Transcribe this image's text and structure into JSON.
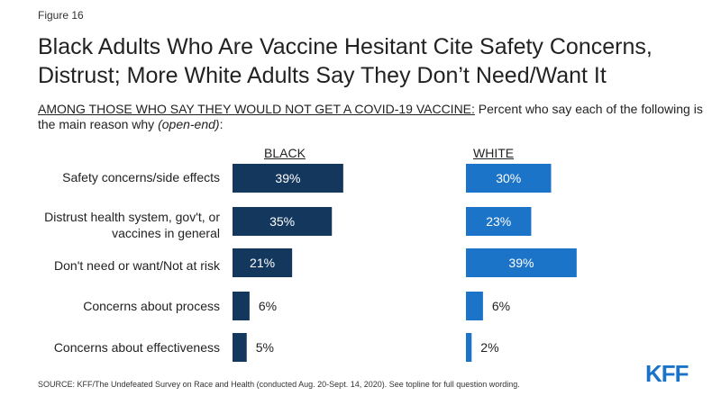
{
  "figure_label": "Figure 16",
  "title": {
    "line1": "Black Adults Who Are Vaccine Hesitant Cite Safety Concerns,",
    "line2": "Distrust; More White Adults Say They Don’t Need/Want It"
  },
  "subtitle": {
    "underlined": "AMONG THOSE WHO SAY THEY WOULD NOT GET A COVID-19 VACCINE:",
    "text": " Percent who say each of the following is the main reason why ",
    "italic": "(open-end)",
    "end": ":"
  },
  "source": "SOURCE: KFF/The Undefeated Survey on Race and Health (conducted Aug. 20-Sept. 14, 2020). See topline for full question wording.",
  "logo": "KFF",
  "colors": {
    "black_series": "#14375e",
    "white_series": "#1c74c9"
  },
  "chart_data": {
    "type": "bar",
    "orientation": "horizontal",
    "categories": [
      [
        "Safety concerns/side effects"
      ],
      [
        "Distrust health system, gov't, or",
        "vaccines in general"
      ],
      [
        "Don't need or want/Not at risk"
      ],
      [
        "Concerns about process"
      ],
      [
        "Concerns about effectiveness"
      ]
    ],
    "series": [
      {
        "name": "BLACK",
        "values": [
          39,
          35,
          21,
          6,
          5
        ],
        "labels": [
          "39%",
          "35%",
          "21%",
          "6%",
          "5%"
        ]
      },
      {
        "name": "WHITE",
        "values": [
          30,
          23,
          39,
          6,
          2
        ],
        "labels": [
          "30%",
          "23%",
          "39%",
          "6%",
          "2%"
        ]
      }
    ],
    "xlim": [
      0,
      100
    ],
    "grid": false,
    "legend": "none"
  }
}
